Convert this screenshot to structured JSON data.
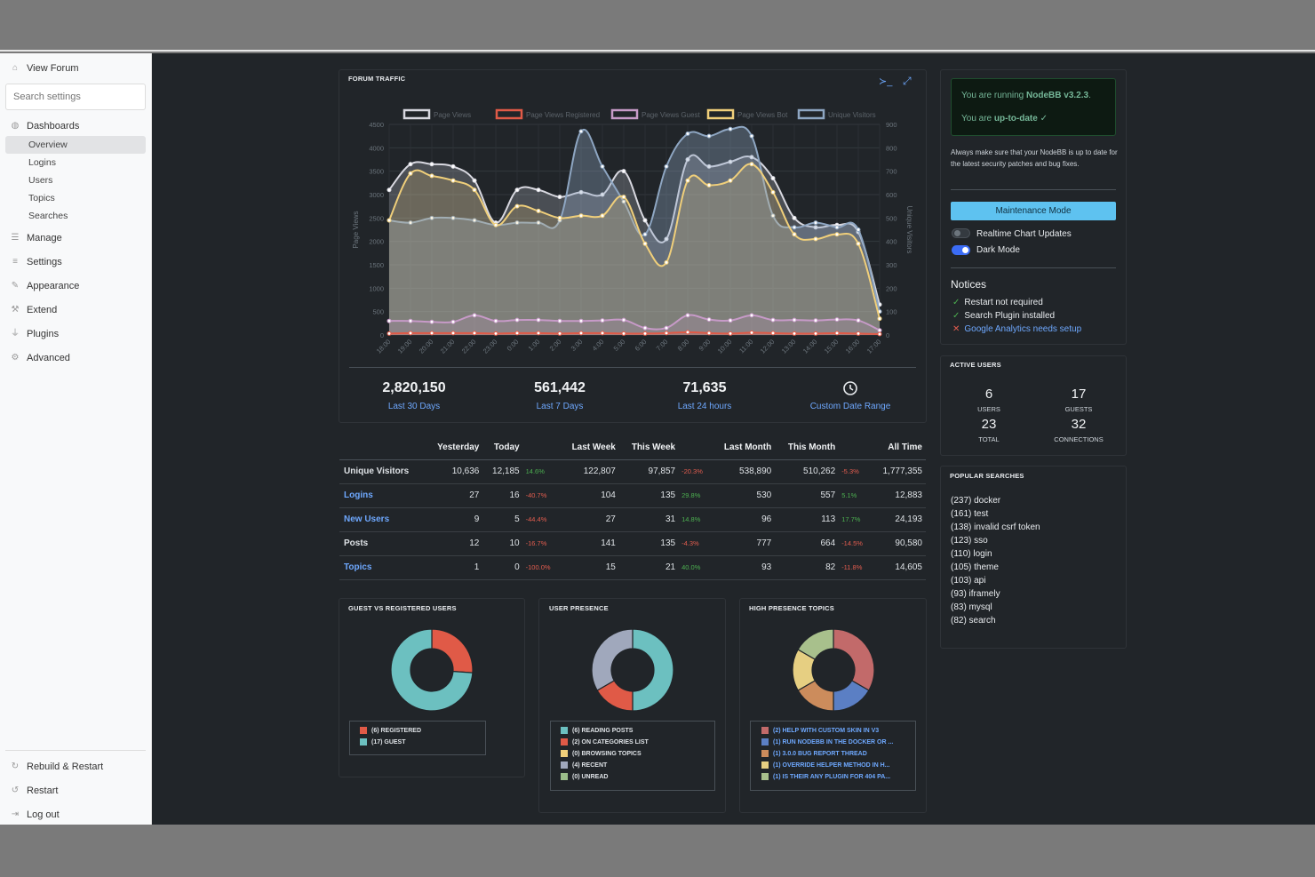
{
  "sidebar": {
    "view_forum": "View Forum",
    "search_placeholder": "Search settings",
    "dashboards": "Dashboards",
    "sub": [
      "Overview",
      "Logins",
      "Users",
      "Topics",
      "Searches"
    ],
    "manage": "Manage",
    "settings": "Settings",
    "appearance": "Appearance",
    "extend": "Extend",
    "plugins": "Plugins",
    "advanced": "Advanced",
    "rebuild": "Rebuild & Restart",
    "restart": "Restart",
    "logout": "Log out"
  },
  "traffic": {
    "title": "FORUM TRAFFIC",
    "stats": [
      {
        "value": "2,820,150",
        "label": "Last 30 Days"
      },
      {
        "value": "561,442",
        "label": "Last 7 Days"
      },
      {
        "value": "71,635",
        "label": "Last 24 hours"
      },
      {
        "value": "",
        "label": "Custom Date Range"
      }
    ]
  },
  "chart_data": {
    "type": "area",
    "title": "",
    "ylabel": "Page Views",
    "y2label": "Unique Visitors",
    "ylim": [
      0,
      4500
    ],
    "y2lim": [
      0,
      900
    ],
    "yticks": [
      0,
      500,
      1000,
      1500,
      2000,
      2500,
      3000,
      3500,
      4000,
      4500
    ],
    "y2ticks": [
      0,
      100,
      200,
      300,
      400,
      500,
      600,
      700,
      800,
      900
    ],
    "categories": [
      "18:00",
      "19:00",
      "20:00",
      "21:00",
      "22:00",
      "23:00",
      "0:00",
      "1:00",
      "2:00",
      "3:00",
      "4:00",
      "5:00",
      "6:00",
      "7:00",
      "8:00",
      "9:00",
      "10:00",
      "11:00",
      "12:00",
      "13:00",
      "14:00",
      "15:00",
      "16:00",
      "17:00"
    ],
    "legend_position": "top",
    "series": [
      {
        "name": "Page Views",
        "color": "#d8d8e0",
        "values": [
          3100,
          3650,
          3650,
          3600,
          3300,
          2400,
          3100,
          3100,
          2950,
          3050,
          3000,
          3500,
          2450,
          2050,
          3750,
          3600,
          3700,
          3800,
          3350,
          2500,
          2300,
          2350,
          2200,
          650
        ]
      },
      {
        "name": "Page Views Registered",
        "color": "#e05a47",
        "values": [
          30,
          40,
          40,
          40,
          40,
          30,
          40,
          40,
          30,
          40,
          40,
          30,
          30,
          40,
          60,
          40,
          30,
          50,
          40,
          30,
          30,
          40,
          30,
          20
        ]
      },
      {
        "name": "Page Views Guest",
        "color": "#c79ac8",
        "values": [
          300,
          300,
          280,
          280,
          420,
          300,
          320,
          320,
          300,
          300,
          310,
          320,
          150,
          150,
          420,
          330,
          310,
          420,
          320,
          320,
          310,
          330,
          310,
          100
        ]
      },
      {
        "name": "Page Views Bot",
        "color": "#f0cf7a",
        "values": [
          2450,
          3450,
          3400,
          3300,
          3100,
          2350,
          2750,
          2650,
          2500,
          2550,
          2550,
          2950,
          1950,
          1550,
          3300,
          3200,
          3300,
          3650,
          3050,
          2150,
          2050,
          2150,
          1950,
          350
        ]
      },
      {
        "name": "Unique Visitors",
        "color": "#8ea6c2",
        "values": [
          490,
          480,
          500,
          500,
          490,
          470,
          480,
          480,
          490,
          870,
          720,
          570,
          430,
          720,
          860,
          850,
          880,
          850,
          510,
          460,
          480,
          460,
          450,
          100
        ]
      }
    ]
  },
  "stats_table": {
    "headers": [
      "",
      "Yesterday",
      "Today",
      "",
      "Last Week",
      "This Week",
      "",
      "Last Month",
      "This Month",
      "",
      "All Time"
    ],
    "rows": [
      {
        "label": "Unique Visitors",
        "link": false,
        "cells": [
          "10,636",
          "12,185",
          "14.6%",
          "122,807",
          "97,857",
          "-20.3%",
          "538,890",
          "510,262",
          "-5.3%",
          "1,777,355"
        ]
      },
      {
        "label": "Logins",
        "link": true,
        "cells": [
          "27",
          "16",
          "-40.7%",
          "104",
          "135",
          "29.8%",
          "530",
          "557",
          "5.1%",
          "12,883"
        ]
      },
      {
        "label": "New Users",
        "link": true,
        "cells": [
          "9",
          "5",
          "-44.4%",
          "27",
          "31",
          "14.8%",
          "96",
          "113",
          "17.7%",
          "24,193"
        ]
      },
      {
        "label": "Posts",
        "link": false,
        "cells": [
          "12",
          "10",
          "-16.7%",
          "141",
          "135",
          "-4.3%",
          "777",
          "664",
          "-14.5%",
          "90,580"
        ]
      },
      {
        "label": "Topics",
        "link": true,
        "cells": [
          "1",
          "0",
          "-100.0%",
          "15",
          "21",
          "40.0%",
          "93",
          "82",
          "-11.8%",
          "14,605"
        ]
      }
    ]
  },
  "guest_chart": {
    "title": "GUEST VS REGISTERED USERS",
    "slices": [
      {
        "label": "(6) REGISTERED",
        "value": 6,
        "color": "#e05a47"
      },
      {
        "label": "(17) GUEST",
        "value": 17,
        "color": "#6cc0c0"
      }
    ]
  },
  "presence_chart": {
    "title": "USER PRESENCE",
    "slices": [
      {
        "label": "(6) READING POSTS",
        "value": 6,
        "color": "#6cc0c0"
      },
      {
        "label": "(2) ON CATEGORIES LIST",
        "value": 2,
        "color": "#e05a47"
      },
      {
        "label": "(0) BROWSING TOPICS",
        "value": 0,
        "color": "#f0cf7a"
      },
      {
        "label": "(4) RECENT",
        "value": 4,
        "color": "#a0a8bc"
      },
      {
        "label": "(0) UNREAD",
        "value": 0,
        "color": "#9bbd8a"
      }
    ]
  },
  "topics_chart": {
    "title": "HIGH PRESENCE TOPICS",
    "slices": [
      {
        "label": "(2) HELP WITH CUSTOM SKIN IN V3",
        "value": 2,
        "color": "#c26a6a"
      },
      {
        "label": "(1) RUN NODEBB IN THE DOCKER OR ...",
        "value": 1,
        "color": "#5b7fc4"
      },
      {
        "label": "(1) 3.0.0 BUG REPORT THREAD",
        "value": 1,
        "color": "#cc8c5c"
      },
      {
        "label": "(1) OVERRIDE HELPER METHOD IN H...",
        "value": 1,
        "color": "#e6cf82"
      },
      {
        "label": "(1) IS THEIR ANY PLUGIN FOR 404 PA...",
        "value": 1,
        "color": "#a8c08c"
      }
    ]
  },
  "version": {
    "running_prefix": "You are running ",
    "version": "NodeBB v3.2.3",
    "running_suffix": ".",
    "uptodate_prefix": "You are ",
    "uptodate": "up-to-date",
    "note": "Always make sure that your NodeBB is up to date for the latest security patches and bug fixes.",
    "maintenance": "Maintenance Mode",
    "realtime": "Realtime Chart Updates",
    "darkmode": "Dark Mode"
  },
  "notices": {
    "title": "Notices",
    "items": [
      {
        "text": "Restart not required",
        "ok": true
      },
      {
        "text": "Search Plugin installed",
        "ok": true
      },
      {
        "text": "Google Analytics needs setup",
        "ok": false
      }
    ]
  },
  "active_users": {
    "title": "ACTIVE USERS",
    "users": "6",
    "users_lbl": "USERS",
    "guests": "17",
    "guests_lbl": "GUESTS",
    "total": "23",
    "total_lbl": "TOTAL",
    "connections": "32",
    "connections_lbl": "CONNECTIONS"
  },
  "popular_searches": {
    "title": "POPULAR SEARCHES",
    "items": [
      "(237) docker",
      "(161) test",
      "(138) invalid csrf token",
      "(123) sso",
      "(110) login",
      "(105) theme",
      "(103) api",
      "(93) iframely",
      "(83) mysql",
      "(82) search"
    ]
  }
}
